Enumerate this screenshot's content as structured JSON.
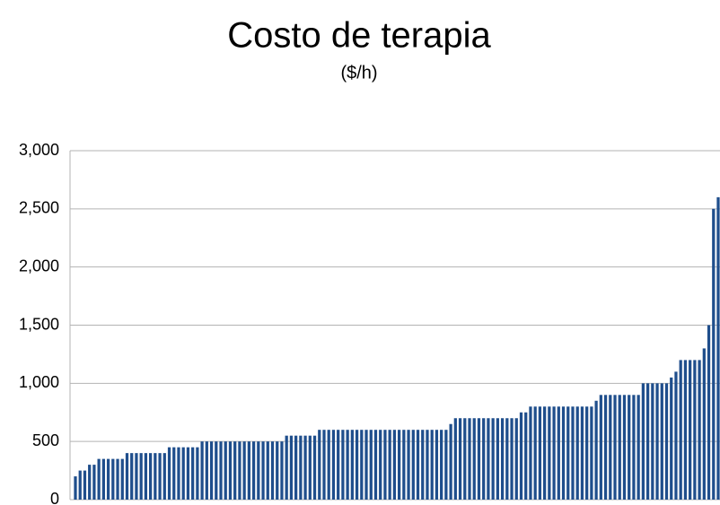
{
  "chart_data": {
    "type": "bar",
    "title": "Costo de terapia",
    "subtitle": "($/h)",
    "values": [
      200,
      250,
      250,
      300,
      300,
      350,
      350,
      350,
      350,
      350,
      350,
      400,
      400,
      400,
      400,
      400,
      400,
      400,
      400,
      400,
      450,
      450,
      450,
      450,
      450,
      450,
      450,
      500,
      500,
      500,
      500,
      500,
      500,
      500,
      500,
      500,
      500,
      500,
      500,
      500,
      500,
      500,
      500,
      500,
      500,
      550,
      550,
      550,
      550,
      550,
      550,
      550,
      600,
      600,
      600,
      600,
      600,
      600,
      600,
      600,
      600,
      600,
      600,
      600,
      600,
      600,
      600,
      600,
      600,
      600,
      600,
      600,
      600,
      600,
      600,
      600,
      600,
      600,
      600,
      600,
      650,
      700,
      700,
      700,
      700,
      700,
      700,
      700,
      700,
      700,
      700,
      700,
      700,
      700,
      700,
      750,
      750,
      800,
      800,
      800,
      800,
      800,
      800,
      800,
      800,
      800,
      800,
      800,
      800,
      800,
      800,
      850,
      900,
      900,
      900,
      900,
      900,
      900,
      900,
      900,
      900,
      1000,
      1000,
      1000,
      1000,
      1000,
      1000,
      1050,
      1100,
      1200,
      1200,
      1200,
      1200,
      1200,
      1300,
      1500,
      2500,
      2600
    ],
    "color": "#1f4e8c",
    "ylim": [
      0,
      3000
    ],
    "yticks": [
      0,
      {
        "value": 500,
        "label": "500"
      },
      {
        "value": 1000,
        "label": "1,000"
      },
      {
        "value": 1500,
        "label": "1,500"
      },
      {
        "value": 2000,
        "label": "2,000"
      },
      {
        "value": 2500,
        "label": "2,500"
      },
      {
        "value": 3000,
        "label": "3,000"
      }
    ],
    "grid": true
  }
}
